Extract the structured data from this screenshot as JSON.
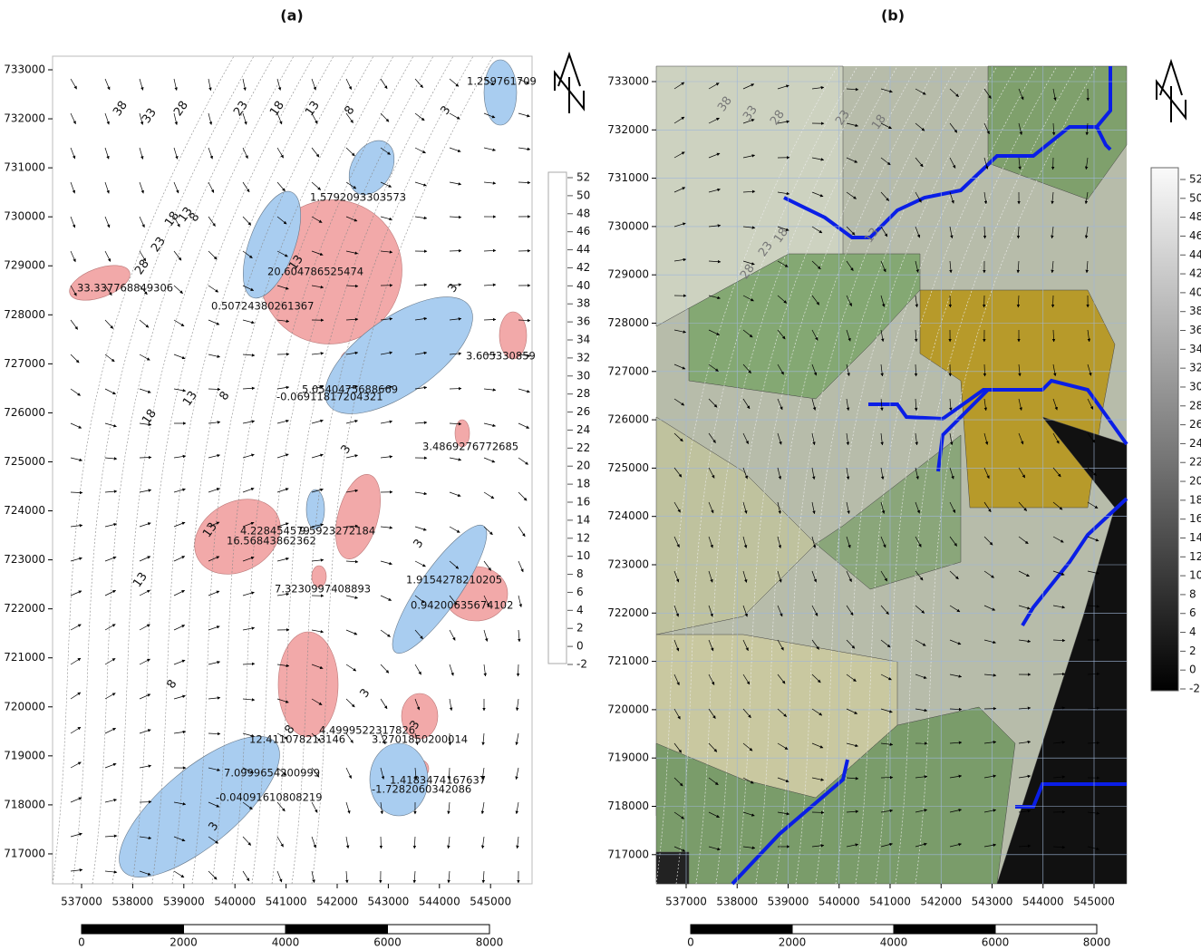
{
  "panels": [
    {
      "label": "(a)",
      "x_ticks": [
        "537000",
        "538000",
        "539000",
        "540000",
        "541000",
        "542000",
        "543000",
        "544000",
        "545000"
      ],
      "y_ticks": [
        "733000",
        "732000",
        "731000",
        "730000",
        "729000",
        "728000",
        "727000",
        "726000",
        "725000",
        "724000",
        "723000",
        "722000",
        "721000",
        "720000",
        "719000",
        "718000",
        "717000"
      ],
      "legend_ticks": [
        "52",
        "50",
        "48",
        "46",
        "44",
        "42",
        "40",
        "38",
        "36",
        "34",
        "32",
        "30",
        "28",
        "26",
        "24",
        "22",
        "20",
        "18",
        "16",
        "14",
        "12",
        "10",
        "8",
        "6",
        "4",
        "2",
        "0",
        "-2"
      ],
      "scale_labels": [
        "0",
        "2000",
        "4000",
        "6000",
        "8000"
      ],
      "contour_labels": [
        "38",
        "33",
        "28",
        "23",
        "18",
        "13",
        "8",
        "3",
        "28",
        "23",
        "18",
        "13",
        "8",
        "13",
        "3",
        "8",
        "13",
        "18",
        "13",
        "3",
        "8",
        "13",
        "3",
        "8",
        "3",
        "3",
        "3"
      ],
      "point_labels": [
        "1.259761709",
        "1.5792093303573",
        "33.337768849306",
        "20.604786525474",
        "0.50724380261367",
        "3.605330859",
        "5.0540475688669",
        "-0.06911817204321",
        "3.4869276772685",
        "4.228454579",
        "9.5923272184",
        "16.56843862362",
        "1.9154278210205",
        "7.3230997408893",
        "0.94200635674102",
        "12.411078213146",
        "4.4999522317826",
        "3.2701850200014",
        "7.0999654200999",
        "-0.04091610808219",
        "1.4183474167637",
        "-1.7282060342086"
      ]
    },
    {
      "label": "(b)",
      "x_ticks": [
        "537000",
        "538000",
        "539000",
        "540000",
        "541000",
        "542000",
        "543000",
        "544000",
        "545000"
      ],
      "y_ticks": [
        "733000",
        "732000",
        "731000",
        "730000",
        "729000",
        "728000",
        "727000",
        "726000",
        "725000",
        "724000",
        "723000",
        "722000",
        "721000",
        "720000",
        "719000",
        "718000",
        "717000"
      ],
      "legend_ticks": [
        "52",
        "50",
        "48",
        "46",
        "44",
        "42",
        "40",
        "38",
        "36",
        "34",
        "32",
        "30",
        "28",
        "26",
        "24",
        "22",
        "20",
        "18",
        "16",
        "14",
        "12",
        "10",
        "8",
        "6",
        "4",
        "2",
        "0",
        "-2"
      ],
      "scale_labels": [
        "0",
        "2000",
        "4000",
        "6000",
        "8000"
      ],
      "contour_labels": [
        "38",
        "33",
        "28",
        "23",
        "18",
        "13",
        "28",
        "23",
        "18"
      ]
    }
  ]
}
